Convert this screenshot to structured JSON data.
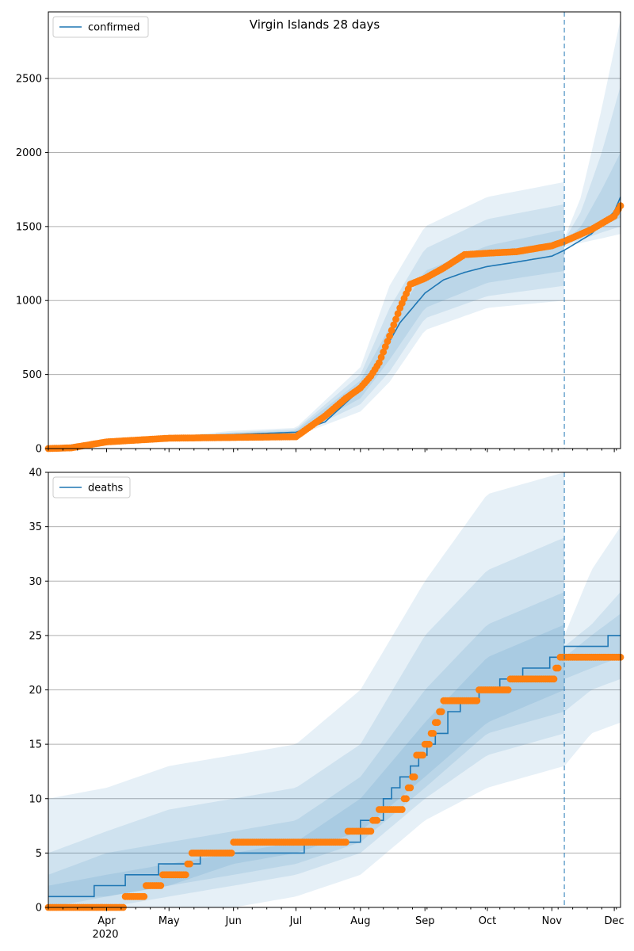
{
  "figure": {
    "title": "Virgin Islands 28 days",
    "year_label": "2020",
    "month_labels": [
      "Apr",
      "May",
      "Jun",
      "Jul",
      "Aug",
      "Sep",
      "Oct",
      "Nov",
      "Dec"
    ],
    "forecast_start": "2020-11-07"
  },
  "colors": {
    "line": "#1f77b4",
    "points": "#ff7f0e",
    "band": "#1f77b4",
    "grid": "#b0b0b0",
    "forecast_marker": "#1f77b4"
  },
  "chart_data": [
    {
      "type": "line",
      "title": "Virgin Islands 28 days",
      "legend": "confirmed",
      "legend_position": "top-left",
      "xlim": [
        "2020-03-04",
        "2020-12-04"
      ],
      "ylim": [
        0,
        2950
      ],
      "yticks": [
        0,
        500,
        1000,
        1500,
        2000,
        2500
      ],
      "grid": "y",
      "series": [
        {
          "name": "confirmed",
          "style": "line",
          "x": [
            "2020-03-04",
            "2020-04-01",
            "2020-05-01",
            "2020-06-01",
            "2020-07-01",
            "2020-07-15",
            "2020-08-01",
            "2020-08-10",
            "2020-08-20",
            "2020-09-01",
            "2020-09-10",
            "2020-09-20",
            "2020-10-01",
            "2020-10-15",
            "2020-11-01",
            "2020-11-07",
            "2020-11-20",
            "2020-12-01",
            "2020-12-04"
          ],
          "y": [
            0,
            60,
            85,
            95,
            110,
            180,
            400,
            600,
            850,
            1050,
            1140,
            1190,
            1230,
            1260,
            1300,
            1340,
            1450,
            1600,
            1700
          ]
        },
        {
          "style": "points",
          "x": [
            "2020-03-04",
            "2020-03-15",
            "2020-04-01",
            "2020-05-01",
            "2020-06-01",
            "2020-07-01",
            "2020-07-15",
            "2020-07-25",
            "2020-08-01",
            "2020-08-06",
            "2020-08-10",
            "2020-08-15",
            "2020-08-20",
            "2020-08-25",
            "2020-09-01",
            "2020-09-10",
            "2020-09-20",
            "2020-10-01",
            "2020-10-15",
            "2020-11-01",
            "2020-11-07",
            "2020-11-20",
            "2020-12-01",
            "2020-12-04"
          ],
          "y": [
            0,
            5,
            45,
            70,
            75,
            80,
            220,
            340,
            410,
            490,
            580,
            760,
            950,
            1110,
            1150,
            1220,
            1310,
            1320,
            1330,
            1370,
            1400,
            1480,
            1570,
            1640
          ]
        }
      ],
      "bands": [
        {
          "x": [
            "2020-03-04",
            "2020-06-01",
            "2020-07-01",
            "2020-08-01",
            "2020-08-15",
            "2020-09-01",
            "2020-10-01",
            "2020-11-07"
          ],
          "low": [
            0,
            80,
            85,
            250,
            450,
            800,
            950,
            1000
          ],
          "high": [
            0,
            120,
            140,
            550,
            1100,
            1500,
            1700,
            1800
          ]
        },
        {
          "x": [
            "2020-03-04",
            "2020-06-01",
            "2020-07-01",
            "2020-08-01",
            "2020-08-15",
            "2020-09-01",
            "2020-10-01",
            "2020-11-07"
          ],
          "low": [
            0,
            85,
            92,
            300,
            520,
            880,
            1030,
            1100
          ],
          "high": [
            0,
            110,
            130,
            500,
            950,
            1350,
            1550,
            1650
          ]
        },
        {
          "x": [
            "2020-03-04",
            "2020-06-01",
            "2020-07-01",
            "2020-08-01",
            "2020-08-15",
            "2020-09-01",
            "2020-10-01",
            "2020-11-07"
          ],
          "low": [
            0,
            90,
            100,
            340,
            600,
            950,
            1120,
            1200
          ],
          "high": [
            0,
            100,
            120,
            460,
            820,
            1200,
            1370,
            1480
          ]
        },
        {
          "x": [
            "2020-11-07",
            "2020-11-15",
            "2020-11-25",
            "2020-12-04"
          ],
          "low": [
            1360,
            1390,
            1420,
            1450
          ],
          "high": [
            1420,
            1700,
            2300,
            2900
          ]
        },
        {
          "x": [
            "2020-11-07",
            "2020-11-15",
            "2020-11-25",
            "2020-12-04"
          ],
          "low": [
            1380,
            1410,
            1460,
            1500
          ],
          "high": [
            1410,
            1600,
            2000,
            2450
          ]
        },
        {
          "x": [
            "2020-11-07",
            "2020-11-15",
            "2020-11-25",
            "2020-12-04"
          ],
          "low": [
            1390,
            1430,
            1500,
            1560
          ],
          "high": [
            1400,
            1500,
            1750,
            2000
          ]
        }
      ]
    },
    {
      "type": "line",
      "legend": "deaths",
      "legend_position": "top-left",
      "xlim": [
        "2020-03-04",
        "2020-12-04"
      ],
      "ylim": [
        0,
        40
      ],
      "yticks": [
        0,
        5,
        10,
        15,
        20,
        25,
        30,
        35,
        40
      ],
      "grid": "y",
      "series": [
        {
          "name": "deaths",
          "style": "step",
          "x": [
            "2020-03-04",
            "2020-03-26",
            "2020-04-10",
            "2020-04-26",
            "2020-05-16",
            "2020-05-25",
            "2020-07-05",
            "2020-08-01",
            "2020-08-12",
            "2020-08-16",
            "2020-08-20",
            "2020-08-25",
            "2020-08-29",
            "2020-09-02",
            "2020-09-06",
            "2020-09-12",
            "2020-09-18",
            "2020-09-27",
            "2020-10-07",
            "2020-10-18",
            "2020-10-31",
            "2020-11-07",
            "2020-11-17",
            "2020-11-28",
            "2020-12-04"
          ],
          "y": [
            1,
            2,
            3,
            4,
            5,
            5,
            6,
            8,
            10,
            11,
            12,
            13,
            14,
            15,
            16,
            18,
            19,
            20,
            21,
            22,
            23,
            24,
            24,
            25,
            25
          ]
        },
        {
          "style": "points",
          "x": [
            "2020-03-04",
            "2020-03-15",
            "2020-03-25",
            "2020-04-03",
            "2020-04-10",
            "2020-04-15",
            "2020-04-17",
            "2020-04-20",
            "2020-04-28",
            "2020-05-10",
            "2020-05-12",
            "2020-06-01",
            "2020-06-20",
            "2020-07-10",
            "2020-07-22",
            "2020-07-26",
            "2020-08-02",
            "2020-08-07",
            "2020-08-10",
            "2020-08-20",
            "2020-08-22",
            "2020-08-24",
            "2020-08-26",
            "2020-08-28",
            "2020-09-01",
            "2020-09-04",
            "2020-09-06",
            "2020-09-08",
            "2020-09-10",
            "2020-09-20",
            "2020-09-27",
            "2020-10-07",
            "2020-10-12",
            "2020-10-16",
            "2020-10-28",
            "2020-11-03",
            "2020-11-05",
            "2020-11-15",
            "2020-11-25",
            "2020-12-04"
          ],
          "y": [
            0,
            0,
            0,
            0,
            1,
            1,
            1,
            2,
            3,
            4,
            5,
            6,
            6,
            6,
            6,
            7,
            7,
            8,
            9,
            9,
            10,
            11,
            12,
            14,
            15,
            16,
            17,
            18,
            19,
            19,
            20,
            20,
            21,
            21,
            21,
            22,
            23,
            23,
            23,
            23
          ]
        }
      ],
      "bands": [
        {
          "x": [
            "2020-03-04",
            "2020-04-01",
            "2020-05-01",
            "2020-06-01",
            "2020-07-01",
            "2020-08-01",
            "2020-09-01",
            "2020-10-01",
            "2020-11-07"
          ],
          "low": [
            0,
            0,
            0,
            0,
            1,
            3,
            8,
            11,
            13
          ],
          "high": [
            10,
            11,
            13,
            14,
            15,
            20,
            30,
            38,
            40
          ]
        },
        {
          "x": [
            "2020-03-04",
            "2020-04-01",
            "2020-05-01",
            "2020-06-01",
            "2020-07-01",
            "2020-08-01",
            "2020-09-01",
            "2020-10-01",
            "2020-11-07"
          ],
          "low": [
            0,
            0,
            1,
            2,
            3,
            5,
            10,
            14,
            16
          ],
          "high": [
            5,
            7,
            9,
            10,
            11,
            15,
            25,
            31,
            34
          ]
        },
        {
          "x": [
            "2020-03-04",
            "2020-04-01",
            "2020-05-01",
            "2020-06-01",
            "2020-07-01",
            "2020-08-01",
            "2020-09-01",
            "2020-10-01",
            "2020-11-07"
          ],
          "low": [
            0,
            1,
            2,
            3,
            4,
            6,
            11,
            16,
            18
          ],
          "high": [
            3,
            5,
            6,
            7,
            8,
            12,
            20,
            26,
            29
          ]
        },
        {
          "x": [
            "2020-03-04",
            "2020-04-01",
            "2020-05-01",
            "2020-06-01",
            "2020-07-01",
            "2020-08-01",
            "2020-09-01",
            "2020-10-01",
            "2020-11-07"
          ],
          "low": [
            1,
            1,
            2,
            4,
            5,
            7,
            12,
            17,
            20
          ],
          "high": [
            2,
            3,
            4,
            5,
            6,
            10,
            17,
            23,
            26
          ]
        },
        {
          "x": [
            "2020-11-07",
            "2020-11-20",
            "2020-12-04"
          ],
          "low": [
            13,
            16,
            17
          ],
          "high": [
            25,
            31,
            35
          ]
        },
        {
          "x": [
            "2020-11-07",
            "2020-11-20",
            "2020-12-04"
          ],
          "low": [
            18,
            20,
            21
          ],
          "high": [
            24,
            26,
            29
          ]
        },
        {
          "x": [
            "2020-11-07",
            "2020-11-20",
            "2020-12-04"
          ],
          "low": [
            21,
            22,
            23
          ],
          "high": [
            23,
            25,
            27
          ]
        }
      ]
    }
  ]
}
